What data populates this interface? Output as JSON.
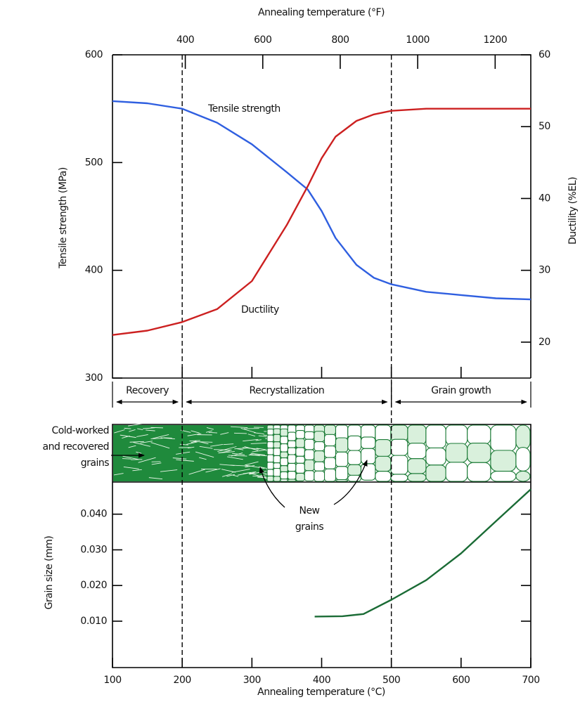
{
  "chart_data": [
    {
      "type": "line",
      "x2label": "Annealing temperature (°F)",
      "ylabel": "Tensile strength (MPa)",
      "y2label": "Ductility (%EL)",
      "x": [
        100,
        150,
        200,
        250,
        300,
        350,
        380,
        400,
        420,
        450,
        475,
        500,
        550,
        600,
        650,
        700
      ],
      "xlim": [
        100,
        700
      ],
      "xticks": [
        200,
        300,
        400,
        500,
        600
      ],
      "x2lim": [
        212,
        1292
      ],
      "x2ticks": [
        400,
        600,
        800,
        1000,
        1200
      ],
      "ylim": [
        300,
        600
      ],
      "yticks": [
        300,
        400,
        500,
        600
      ],
      "y2lim": [
        15,
        60
      ],
      "y2ticks": [
        20,
        30,
        40,
        50,
        60
      ],
      "series": [
        {
          "name": "Tensile strength",
          "color": "#2f5fe0",
          "values": [
            557,
            555,
            550,
            537,
            517,
            491,
            475,
            455,
            430,
            405,
            393,
            387,
            380,
            377,
            374,
            373
          ]
        },
        {
          "name": "Ductility",
          "color": "#cc2020",
          "axis": "y2",
          "values": [
            21,
            21.6,
            22.8,
            24.6,
            28.5,
            36.3,
            41.7,
            45.6,
            48.6,
            50.8,
            51.7,
            52.2,
            52.5,
            52.5,
            52.5,
            52.5
          ]
        }
      ],
      "dividers": [
        200,
        500
      ],
      "regions": [
        {
          "label": "Recovery",
          "range": [
            100,
            200
          ]
        },
        {
          "label": "Recrystallization",
          "range": [
            200,
            500
          ]
        },
        {
          "label": "Grain growth",
          "range": [
            500,
            700
          ]
        }
      ]
    },
    {
      "type": "line",
      "xlabel": "Annealing temperature (°C)",
      "ylabel": "Grain size (mm)",
      "x": [
        390,
        430,
        460,
        500,
        550,
        600,
        650,
        700
      ],
      "values": [
        0.0113,
        0.0114,
        0.012,
        0.016,
        0.0215,
        0.029,
        0.038,
        0.047
      ],
      "color": "#1a6b35",
      "xlim": [
        100,
        700
      ],
      "xticks": [
        100,
        200,
        300,
        400,
        500,
        600,
        700
      ],
      "ylim": [
        -0.003,
        0.049
      ],
      "yticks": [
        {
          "value": 0.01,
          "label": "0.010"
        },
        {
          "value": 0.02,
          "label": "0.020"
        },
        {
          "value": 0.03,
          "label": "0.030"
        },
        {
          "value": 0.04,
          "label": "0.040"
        }
      ],
      "annotations": [
        {
          "lines": [
            "Cold-worked",
            "and recovered",
            "grains"
          ]
        },
        {
          "lines": [
            "New",
            "grains"
          ]
        }
      ]
    }
  ]
}
